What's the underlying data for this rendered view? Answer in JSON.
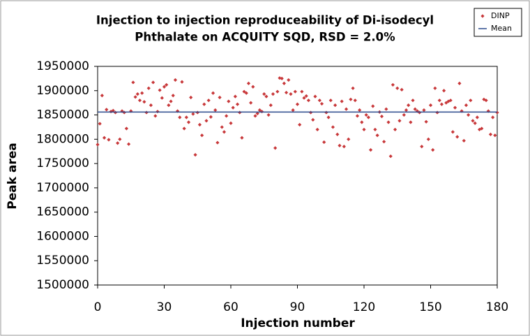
{
  "chart_data": {
    "type": "scatter",
    "title": [
      "Injection to injection reproduceability of Di-isodecyl",
      "Phthalate on ACQUITY SQD, RSD = 2.0%"
    ],
    "xlabel": "Injection number",
    "ylabel": "Peak area",
    "xlim": [
      0,
      180
    ],
    "xticks": [
      0,
      30,
      60,
      90,
      120,
      150,
      180
    ],
    "ylim": [
      1500000,
      1950000
    ],
    "yticks": [
      1500000,
      1550000,
      1600000,
      1650000,
      1700000,
      1750000,
      1800000,
      1850000,
      1900000,
      1950000
    ],
    "grid": false,
    "legend": "top-right",
    "series": [
      {
        "name": "DINP",
        "color": "#c8383a",
        "kind": "marker",
        "x": [
          0,
          1,
          2,
          3,
          4,
          5,
          6,
          7,
          8,
          9,
          10,
          11,
          12,
          13,
          14,
          15,
          16,
          17,
          18,
          19,
          20,
          21,
          22,
          23,
          24,
          25,
          26,
          27,
          28,
          29,
          30,
          31,
          32,
          33,
          34,
          35,
          36,
          37,
          38,
          39,
          40,
          41,
          42,
          43,
          44,
          45,
          46,
          47,
          48,
          49,
          50,
          51,
          52,
          53,
          54,
          55,
          56,
          57,
          58,
          59,
          60,
          61,
          62,
          63,
          64,
          65,
          66,
          67,
          68,
          69,
          70,
          71,
          72,
          73,
          74,
          75,
          76,
          77,
          78,
          79,
          80,
          81,
          82,
          83,
          84,
          85,
          86,
          87,
          88,
          89,
          90,
          91,
          92,
          93,
          94,
          95,
          96,
          97,
          98,
          99,
          100,
          101,
          102,
          103,
          104,
          105,
          106,
          107,
          108,
          109,
          110,
          111,
          112,
          113,
          114,
          115,
          116,
          117,
          118,
          119,
          120,
          121,
          122,
          123,
          124,
          125,
          126,
          127,
          128,
          129,
          130,
          131,
          132,
          133,
          134,
          135,
          136,
          137,
          138,
          139,
          140,
          141,
          142,
          143,
          144,
          145,
          146,
          147,
          148,
          149,
          150,
          151,
          152,
          153,
          154,
          155,
          156,
          157,
          158,
          159,
          160,
          161,
          162,
          163,
          164,
          165,
          166,
          167,
          168,
          169,
          170,
          171,
          172,
          173,
          174,
          175,
          176,
          177,
          178,
          179,
          180
        ],
        "values": [
          1789000,
          1832000,
          1890000,
          1803000,
          1861000,
          1799000,
          1857000,
          1859000,
          1855000,
          1792000,
          1800000,
          1858000,
          1855000,
          1822000,
          1790000,
          1858000,
          1917000,
          1887000,
          1893000,
          1880000,
          1895000,
          1877000,
          1855000,
          1905000,
          1870000,
          1917000,
          1848000,
          1857000,
          1901000,
          1885000,
          1908000,
          1912000,
          1870000,
          1878000,
          1890000,
          1922000,
          1858000,
          1845000,
          1918000,
          1822000,
          1845000,
          1835000,
          1886000,
          1852000,
          1768000,
          1855000,
          1830000,
          1808000,
          1872000,
          1838000,
          1880000,
          1846000,
          1895000,
          1860000,
          1793000,
          1886000,
          1825000,
          1815000,
          1848000,
          1878000,
          1833000,
          1865000,
          1888000,
          1872000,
          1855000,
          1803000,
          1898000,
          1895000,
          1915000,
          1875000,
          1908000,
          1848000,
          1853000,
          1860000,
          1857000,
          1893000,
          1888000,
          1850000,
          1870000,
          1893000,
          1782000,
          1898000,
          1926000,
          1925000,
          1915000,
          1896000,
          1922000,
          1893000,
          1860000,
          1898000,
          1872000,
          1830000,
          1898000,
          1885000,
          1889000,
          1880000,
          1855000,
          1840000,
          1888000,
          1820000,
          1880000,
          1873000,
          1794000,
          1855000,
          1845000,
          1880000,
          1825000,
          1870000,
          1810000,
          1787000,
          1878000,
          1785000,
          1862000,
          1800000,
          1882000,
          1905000,
          1880000,
          1848000,
          1860000,
          1835000,
          1820000,
          1850000,
          1845000,
          1778000,
          1868000,
          1820000,
          1808000,
          1856000,
          1847000,
          1795000,
          1862000,
          1835000,
          1765000,
          1912000,
          1820000,
          1905000,
          1838000,
          1902000,
          1850000,
          1860000,
          1870000,
          1835000,
          1880000,
          1862000,
          1858000,
          1855000,
          1785000,
          1860000,
          1836000,
          1800000,
          1870000,
          1778000,
          1905000,
          1855000,
          1880000,
          1872000,
          1900000,
          1875000,
          1878000,
          1880000,
          1815000,
          1865000,
          1805000,
          1915000,
          1858000,
          1797000,
          1870000,
          1850000,
          1880000,
          1838000,
          1833000,
          1845000,
          1820000,
          1822000,
          1882000,
          1880000,
          1858000,
          1810000,
          1845000,
          1808000,
          1855000
        ]
      },
      {
        "name": "Mean",
        "color": "#2a4a8c",
        "kind": "line",
        "x": [
          0,
          180
        ],
        "values": [
          1856000,
          1856000
        ]
      }
    ]
  }
}
